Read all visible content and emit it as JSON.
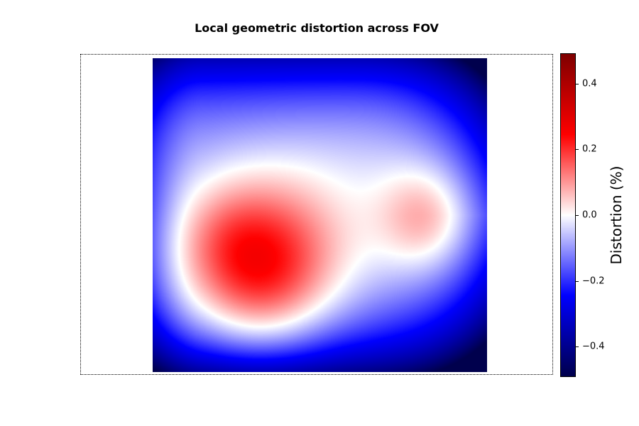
{
  "chart_data": {
    "type": "heatmap",
    "title": "Local geometric distortion across FOV",
    "colormap": "seismic",
    "colors": {
      "low": "#00004d",
      "mid": "#ffffff",
      "high": "#800000"
    },
    "vmin": -0.49,
    "vmax": 0.49,
    "colorbar": {
      "label": "Distortion (%)",
      "ticks": [
        0.4,
        0.2,
        0.0,
        -0.2,
        -0.4
      ],
      "tick_labels": [
        "0.4",
        "0.2",
        "0.0",
        "−0.2",
        "−0.4"
      ]
    },
    "features": [
      {
        "kind": "peak",
        "u": 0.31,
        "v": 0.69,
        "value": 0.22
      },
      {
        "kind": "local_max",
        "u": 0.82,
        "v": 0.51,
        "value": 0.0
      },
      {
        "kind": "corner_min",
        "u": 1.0,
        "v": 1.0,
        "value": -0.45
      },
      {
        "kind": "corner_min",
        "u": 1.0,
        "v": 0.0,
        "value": -0.42
      },
      {
        "kind": "edge_low",
        "u": 0.0,
        "v": 1.0,
        "value": -0.3
      },
      {
        "kind": "edge_low",
        "u": 0.5,
        "v": 1.0,
        "value": -0.3
      }
    ],
    "grid": false,
    "axes_visible": false
  }
}
